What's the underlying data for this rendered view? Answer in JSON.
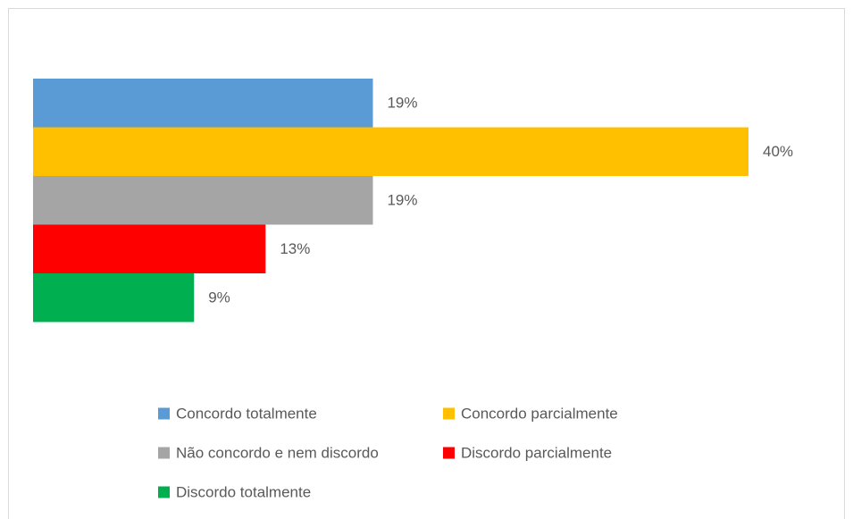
{
  "chart_data": {
    "type": "bar",
    "orientation": "horizontal",
    "series": [
      {
        "name": "Concordo totalmente",
        "color": "#5b9bd5",
        "values": [
          19
        ],
        "value_labels": [
          "19%"
        ]
      },
      {
        "name": "Concordo parcialmente",
        "color": "#ffc000",
        "values": [
          40
        ],
        "value_labels": [
          "40%"
        ]
      },
      {
        "name": "Não concordo e nem discordo",
        "color": "#a5a5a5",
        "values": [
          19
        ],
        "value_labels": [
          "19%"
        ]
      },
      {
        "name": "Discordo parcialmente",
        "color": "#ff0000",
        "values": [
          13
        ],
        "value_labels": [
          "13%"
        ]
      },
      {
        "name": "Discordo totalmente",
        "color": "#00b050",
        "values": [
          9
        ],
        "value_labels": [
          "9%"
        ]
      }
    ],
    "legend": "bottom"
  }
}
